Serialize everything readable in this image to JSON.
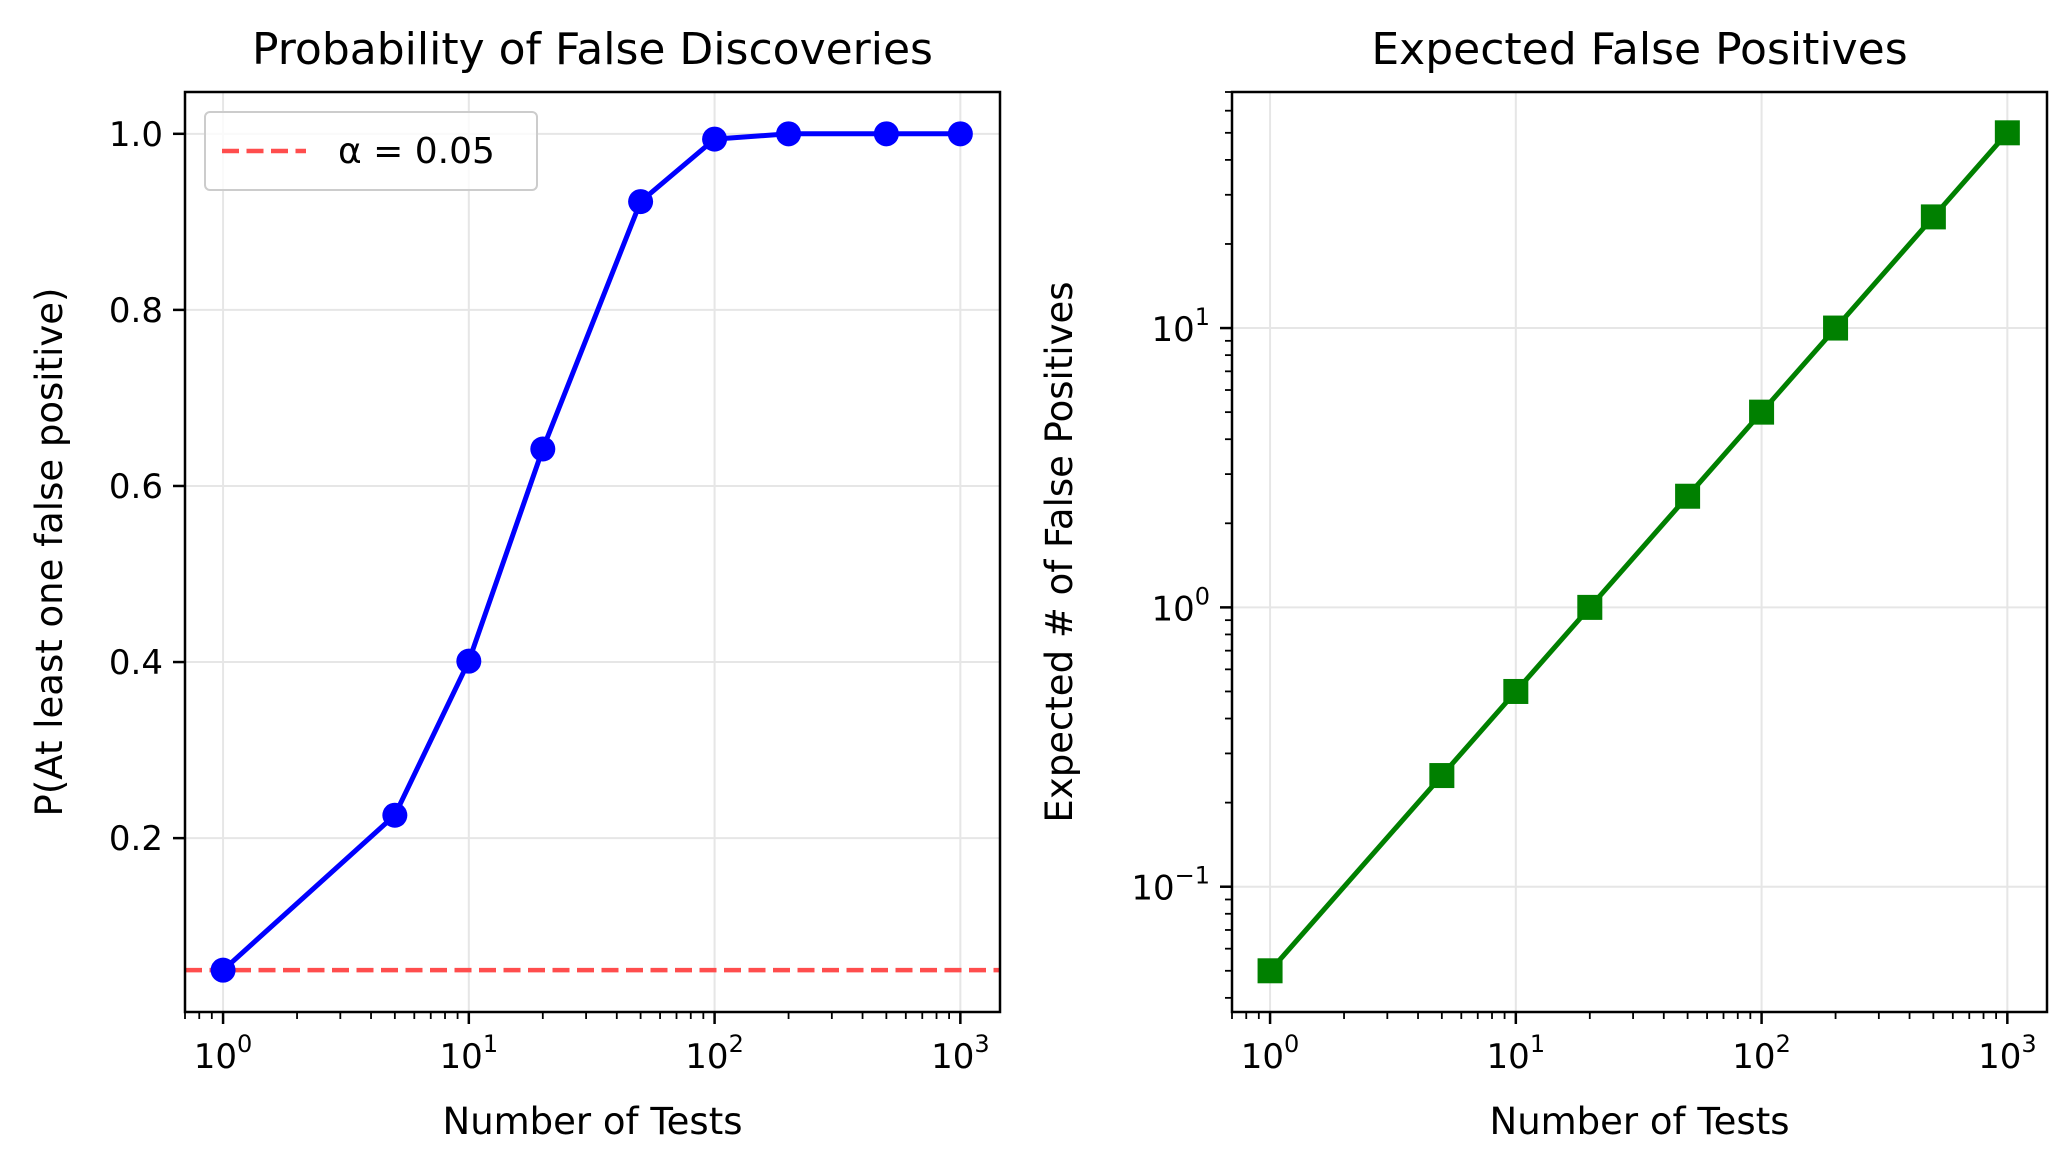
{
  "chart_data": [
    {
      "type": "line",
      "title": "Probability of False Discoveries",
      "xlabel": "Number of Tests",
      "ylabel": "P(At least one false positive)",
      "xscale": "log",
      "yscale": "linear",
      "xlim": [
        0.7,
        1450
      ],
      "ylim": [
        0.0025,
        1.0475
      ],
      "xticks": [
        {
          "value": 1,
          "base": "10",
          "exp": "0"
        },
        {
          "value": 10,
          "base": "10",
          "exp": "1"
        },
        {
          "value": 100,
          "base": "10",
          "exp": "2"
        },
        {
          "value": 1000,
          "base": "10",
          "exp": "3"
        }
      ],
      "yticks": [
        {
          "value": 0.2,
          "label": "0.2"
        },
        {
          "value": 0.4,
          "label": "0.4"
        },
        {
          "value": 0.6,
          "label": "0.6"
        },
        {
          "value": 0.8,
          "label": "0.8"
        },
        {
          "value": 1.0,
          "label": "1.0"
        }
      ],
      "grid": true,
      "series": [
        {
          "marker": "circle",
          "color": "#0000ff",
          "x": [
            1,
            5,
            10,
            20,
            50,
            100,
            200,
            500,
            1000
          ],
          "y": [
            0.05,
            0.226,
            0.401,
            0.642,
            0.923,
            0.994,
            1.0,
            1.0,
            1.0
          ]
        }
      ],
      "reference_lines": [
        {
          "orientation": "horizontal",
          "y": 0.05,
          "color": "#ff4d4d",
          "style": "dashed",
          "label": "α = 0.05"
        }
      ],
      "legend_position": "top-left"
    },
    {
      "type": "line",
      "title": "Expected False Positives",
      "xlabel": "Number of Tests",
      "ylabel": "Expected # of False Positives",
      "xscale": "log",
      "yscale": "log",
      "xlim": [
        0.7,
        1450
      ],
      "ylim": [
        0.0356,
        70
      ],
      "xticks": [
        {
          "value": 1,
          "base": "10",
          "exp": "0"
        },
        {
          "value": 10,
          "base": "10",
          "exp": "1"
        },
        {
          "value": 100,
          "base": "10",
          "exp": "2"
        },
        {
          "value": 1000,
          "base": "10",
          "exp": "3"
        }
      ],
      "yticks": [
        {
          "value": 0.1,
          "base": "10",
          "exp": "−1"
        },
        {
          "value": 1,
          "base": "10",
          "exp": "0"
        },
        {
          "value": 10,
          "base": "10",
          "exp": "1"
        }
      ],
      "grid": true,
      "series": [
        {
          "marker": "square",
          "color": "#008000",
          "x": [
            1,
            5,
            10,
            20,
            50,
            100,
            200,
            500,
            1000
          ],
          "y": [
            0.05,
            0.25,
            0.5,
            1,
            2.5,
            5,
            10,
            25,
            50
          ]
        }
      ]
    }
  ]
}
